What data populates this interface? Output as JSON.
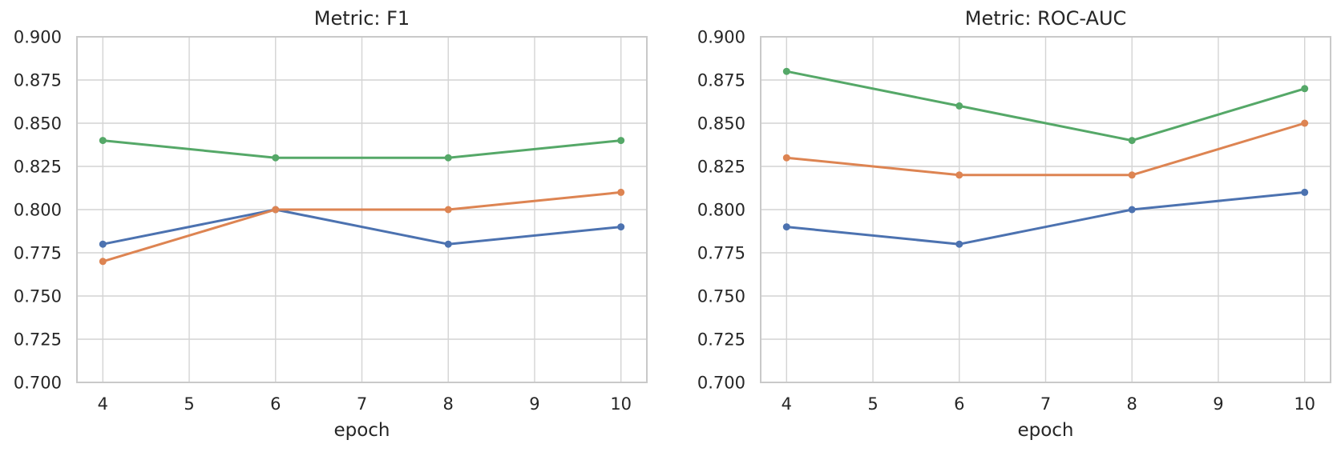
{
  "figure": {
    "background": "#ffffff",
    "grid_color": "#d4d4d4",
    "spine_color": "#c9c9c9",
    "text_color": "#262626"
  },
  "chart_data": [
    {
      "type": "line",
      "title": "Metric: F1",
      "xlabel": "epoch",
      "ylabel": "",
      "x": [
        4,
        6,
        8,
        10
      ],
      "series": [
        {
          "name": "blue",
          "color": "#4C72B0",
          "values": [
            0.78,
            0.8,
            0.78,
            0.79
          ]
        },
        {
          "name": "orange",
          "color": "#DD8452",
          "values": [
            0.77,
            0.8,
            0.8,
            0.81
          ]
        },
        {
          "name": "green",
          "color": "#55A868",
          "values": [
            0.84,
            0.83,
            0.83,
            0.84
          ]
        }
      ],
      "xlim": [
        3.7,
        10.3
      ],
      "ylim": [
        0.7,
        0.9
      ],
      "xticks": [
        4,
        5,
        6,
        7,
        8,
        9,
        10
      ],
      "xtick_labels": [
        "4",
        "5",
        "6",
        "7",
        "8",
        "9",
        "10"
      ],
      "yticks": [
        0.7,
        0.725,
        0.75,
        0.775,
        0.8,
        0.825,
        0.85,
        0.875,
        0.9
      ],
      "ytick_labels": [
        "0.700",
        "0.725",
        "0.750",
        "0.775",
        "0.800",
        "0.825",
        "0.850",
        "0.875",
        "0.900"
      ],
      "grid": true,
      "legend": "none",
      "marker": "o"
    },
    {
      "type": "line",
      "title": "Metric: ROC-AUC",
      "xlabel": "epoch",
      "ylabel": "",
      "x": [
        4,
        6,
        8,
        10
      ],
      "series": [
        {
          "name": "blue",
          "color": "#4C72B0",
          "values": [
            0.79,
            0.78,
            0.8,
            0.81
          ]
        },
        {
          "name": "orange",
          "color": "#DD8452",
          "values": [
            0.83,
            0.82,
            0.82,
            0.85
          ]
        },
        {
          "name": "green",
          "color": "#55A868",
          "values": [
            0.88,
            0.86,
            0.84,
            0.87
          ]
        }
      ],
      "xlim": [
        3.7,
        10.3
      ],
      "ylim": [
        0.7,
        0.9
      ],
      "xticks": [
        4,
        5,
        6,
        7,
        8,
        9,
        10
      ],
      "xtick_labels": [
        "4",
        "5",
        "6",
        "7",
        "8",
        "9",
        "10"
      ],
      "yticks": [
        0.7,
        0.725,
        0.75,
        0.775,
        0.8,
        0.825,
        0.85,
        0.875,
        0.9
      ],
      "ytick_labels": [
        "0.700",
        "0.725",
        "0.750",
        "0.775",
        "0.800",
        "0.825",
        "0.850",
        "0.875",
        "0.900"
      ],
      "grid": true,
      "legend": "none",
      "marker": "o"
    }
  ]
}
